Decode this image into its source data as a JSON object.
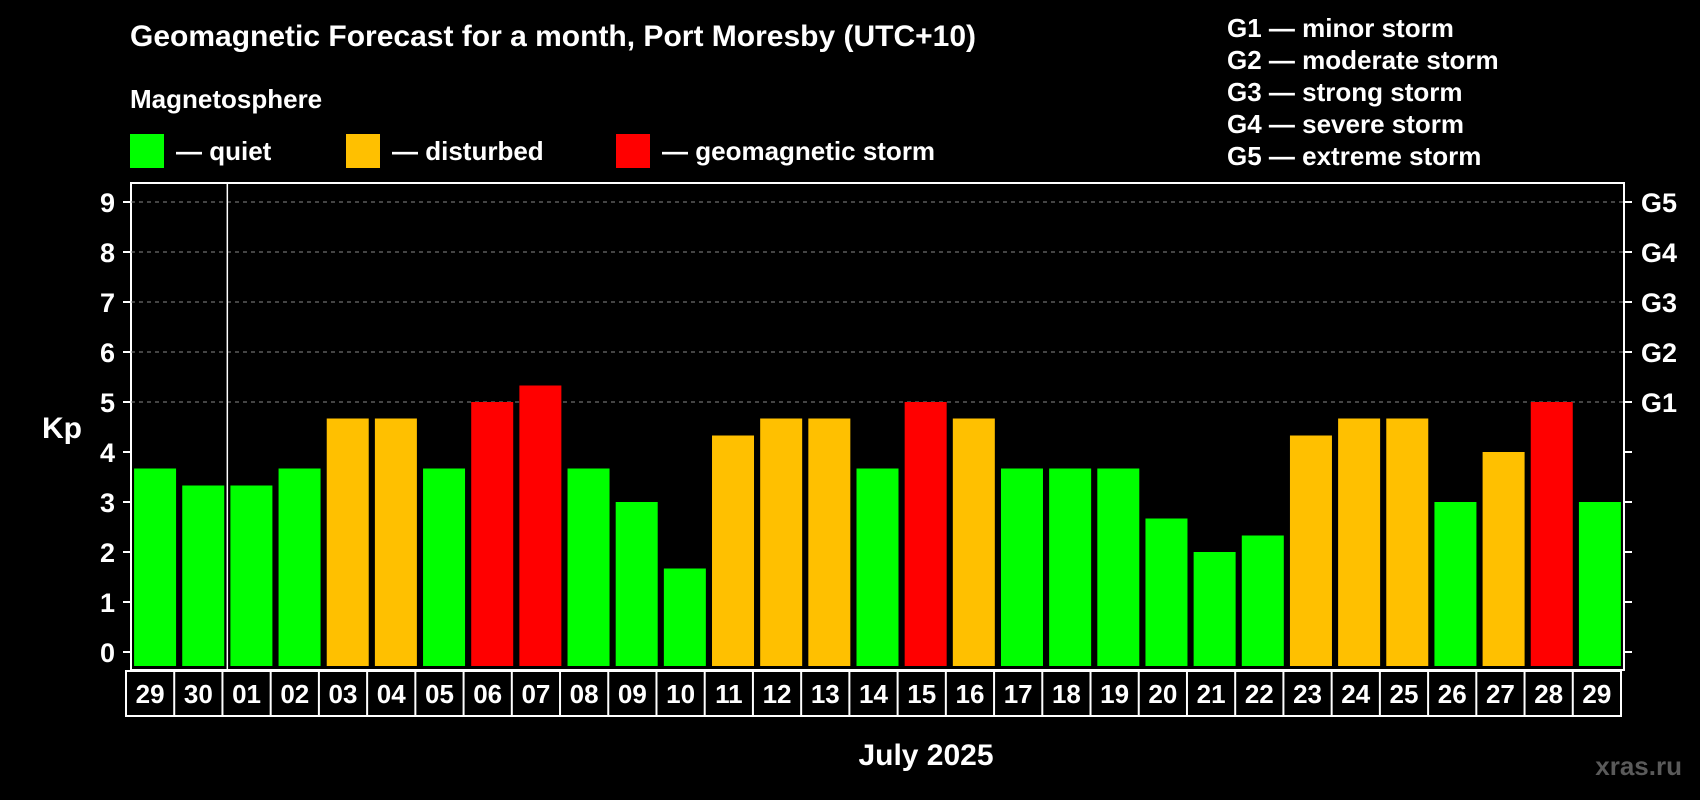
{
  "chart_data": {
    "type": "bar",
    "title": "Geomagnetic Forecast for a month, Port Moresby (UTC+10)",
    "subtitle": "Magnetosphere",
    "ylabel": "Kp",
    "xlabel": "July 2025",
    "ylim": [
      0,
      9
    ],
    "yticks": [
      "0",
      "1",
      "2",
      "3",
      "4",
      "5",
      "6",
      "7",
      "8",
      "9"
    ],
    "right_ticks": [
      {
        "kp": 5,
        "label": "G1"
      },
      {
        "kp": 6,
        "label": "G2"
      },
      {
        "kp": 7,
        "label": "G3"
      },
      {
        "kp": 8,
        "label": "G4"
      },
      {
        "kp": 9,
        "label": "G5"
      }
    ],
    "categories": [
      "29",
      "30",
      "01",
      "02",
      "03",
      "04",
      "05",
      "06",
      "07",
      "08",
      "09",
      "10",
      "11",
      "12",
      "13",
      "14",
      "15",
      "16",
      "17",
      "18",
      "19",
      "20",
      "21",
      "22",
      "23",
      "24",
      "25",
      "26",
      "27",
      "28",
      "29"
    ],
    "values": [
      3.67,
      3.33,
      3.33,
      3.67,
      4.67,
      4.67,
      3.67,
      5.0,
      5.33,
      3.67,
      3.0,
      1.67,
      4.33,
      4.67,
      4.67,
      3.67,
      5.0,
      4.67,
      3.67,
      3.67,
      3.67,
      2.67,
      2.0,
      2.33,
      4.33,
      4.67,
      4.67,
      3.0,
      4.0,
      5.0,
      3.0
    ],
    "status": [
      "quiet",
      "quiet",
      "quiet",
      "quiet",
      "disturbed",
      "disturbed",
      "quiet",
      "storm",
      "storm",
      "quiet",
      "quiet",
      "quiet",
      "disturbed",
      "disturbed",
      "disturbed",
      "quiet",
      "storm",
      "disturbed",
      "quiet",
      "quiet",
      "quiet",
      "quiet",
      "quiet",
      "quiet",
      "disturbed",
      "disturbed",
      "disturbed",
      "quiet",
      "disturbed",
      "storm",
      "quiet"
    ],
    "month_divider_after_index": 1,
    "grid": true
  },
  "legend": {
    "quiet": "— quiet",
    "disturbed": "— disturbed",
    "storm": "— geomagnetic storm"
  },
  "gscale": [
    "G1 — minor storm",
    "G2 — moderate storm",
    "G3 — strong storm",
    "G4 — severe storm",
    "G5 — extreme storm"
  ],
  "colors": {
    "quiet": "#00ff00",
    "disturbed": "#ffc000",
    "storm": "#ff0000",
    "background": "#000000",
    "axis": "#ffffff",
    "grid": "#888888",
    "watermark": "#5a5a5a"
  },
  "watermark": "xras.ru"
}
